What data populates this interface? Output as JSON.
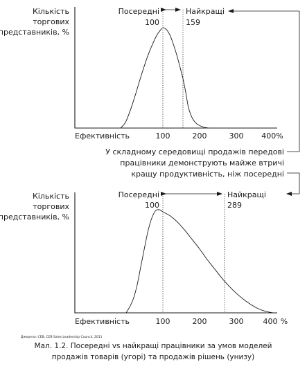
{
  "chart_data": [
    {
      "type": "line",
      "ylabel": [
        "Кількість",
        "торгових",
        "представників, %"
      ],
      "xlabel": "Ефективність",
      "x_ticks": [
        "100",
        "200",
        "300",
        "400%"
      ],
      "xlim": [
        0,
        400
      ],
      "ylim": [
        0,
        100
      ],
      "markers": {
        "average": {
          "label": "Посередні",
          "value": "100",
          "x": 100
        },
        "best": {
          "label": "Найкращі",
          "value": "159",
          "x": 159
        }
      },
      "x": [
        -15,
        0,
        20,
        40,
        60,
        80,
        90,
        100,
        110,
        120,
        130,
        140,
        150,
        155,
        160,
        165,
        170,
        180,
        190,
        200,
        210,
        225
      ],
      "values": [
        0,
        7,
        27,
        51,
        73,
        90,
        96,
        100,
        98,
        92,
        82,
        70,
        56,
        49,
        40,
        30,
        20,
        10,
        5,
        2.5,
        1,
        0
      ]
    },
    {
      "type": "line",
      "ylabel": [
        "Кількість",
        "торгових",
        "представників, %"
      ],
      "xlabel": "Ефективність",
      "x_ticks": [
        "100",
        "200",
        "300",
        "400",
        "%"
      ],
      "xlim": [
        0,
        400
      ],
      "ylim": [
        0,
        100
      ],
      "markers": {
        "average": {
          "label": "Посередні",
          "value": "100",
          "x": 100
        },
        "best": {
          "label": "Найкращі",
          "value": "289",
          "x": 289
        }
      },
      "x": [
        0,
        10,
        20,
        30,
        40,
        50,
        60,
        70,
        80,
        90,
        100,
        120,
        140,
        160,
        180,
        200,
        220,
        240,
        260,
        280,
        300,
        320,
        340,
        360,
        380,
        400
      ],
      "values": [
        0,
        6,
        14,
        27,
        45,
        63,
        80,
        92,
        99,
        100,
        98,
        94,
        88,
        80,
        71,
        62,
        52,
        43,
        34,
        26,
        19,
        13,
        8,
        4,
        1.5,
        0
      ]
    }
  ],
  "annotation": [
    "У складному середовищі продажів передові",
    "працівники демонструють майже втричі",
    "кращу продуктивність, ніж посередні"
  ],
  "source": "Джерело: CEB, CEB Sales Leadership Council, 2011",
  "caption": [
    "Мал. 1.2. Посередні vs найкращі працівники за умов моделей",
    "продажів товарів (угорі) та продажів рішень (унизу)"
  ]
}
